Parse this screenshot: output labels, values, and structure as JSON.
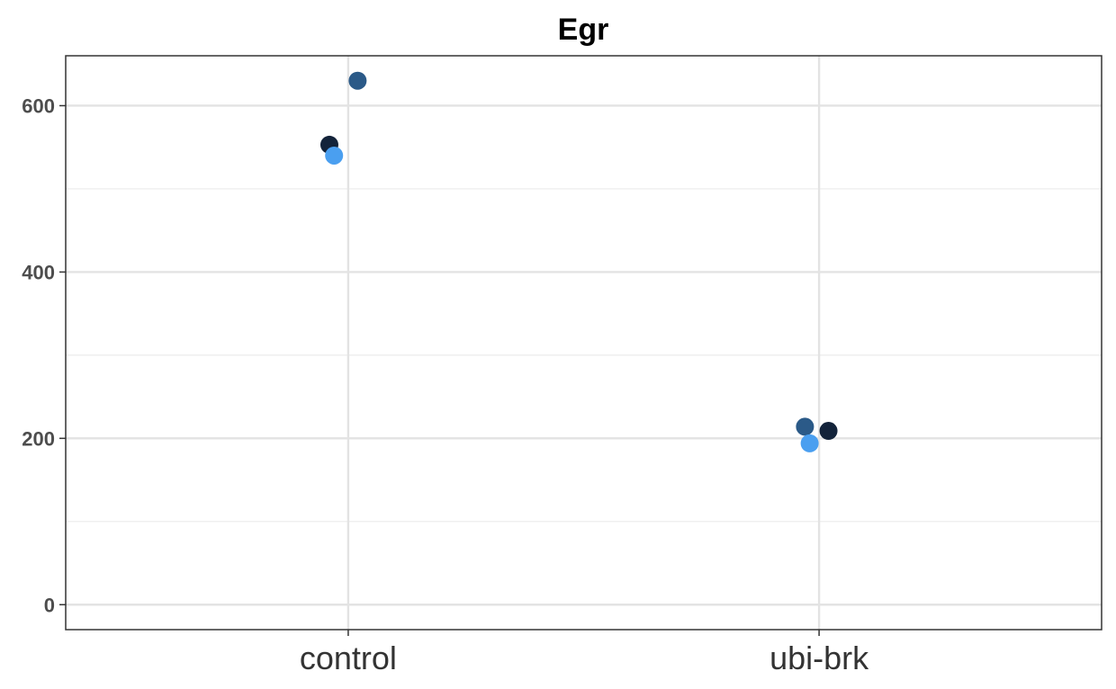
{
  "chart_data": {
    "type": "scatter",
    "title": "Egr",
    "xlabel": "",
    "ylabel": "",
    "categories": [
      "control",
      "ubi-brk"
    ],
    "ylim": [
      -30,
      660
    ],
    "yticks": [
      0,
      200,
      400,
      600
    ],
    "yticks_minor": [
      100,
      300,
      500
    ],
    "grid": true,
    "legend": "none",
    "points": [
      {
        "category": "control",
        "jitter": -0.04,
        "value": 553,
        "color": "#13233a"
      },
      {
        "category": "control",
        "jitter": -0.03,
        "value": 540,
        "color": "#4a9ff0"
      },
      {
        "category": "control",
        "jitter": 0.02,
        "value": 630,
        "color": "#2b5a88"
      },
      {
        "category": "ubi-brk",
        "jitter": -0.03,
        "value": 214,
        "color": "#2b5a88"
      },
      {
        "category": "ubi-brk",
        "jitter": -0.02,
        "value": 194,
        "color": "#4a9ff0"
      },
      {
        "category": "ubi-brk",
        "jitter": 0.02,
        "value": 209,
        "color": "#13233a"
      }
    ]
  }
}
